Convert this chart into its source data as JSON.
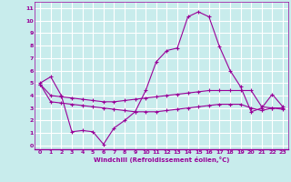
{
  "background_color": "#c8ecec",
  "line_color": "#990099",
  "grid_color": "#ffffff",
  "xlabel": "Windchill (Refroidissement éolien,°C)",
  "x_ticks": [
    0,
    1,
    2,
    3,
    4,
    5,
    6,
    7,
    8,
    9,
    10,
    11,
    12,
    13,
    14,
    15,
    16,
    17,
    18,
    19,
    20,
    21,
    22,
    23
  ],
  "y_ticks": [
    0,
    1,
    2,
    3,
    4,
    5,
    6,
    7,
    8,
    9,
    10,
    11
  ],
  "ylim": [
    -0.3,
    11.5
  ],
  "xlim": [
    -0.5,
    23.5
  ],
  "series": [
    {
      "x": [
        0,
        1,
        2,
        3,
        4,
        5,
        6,
        7,
        8,
        9,
        10,
        11,
        12,
        13,
        14,
        15,
        16,
        17,
        18,
        19,
        20,
        21,
        22,
        23
      ],
      "y": [
        5.0,
        5.5,
        4.0,
        1.1,
        1.2,
        1.1,
        0.1,
        1.4,
        2.0,
        2.7,
        4.4,
        6.7,
        7.6,
        7.8,
        10.3,
        10.7,
        10.3,
        7.9,
        6.0,
        4.7,
        2.7,
        3.0,
        4.1,
        3.1
      ]
    },
    {
      "x": [
        0,
        1,
        2,
        3,
        4,
        5,
        6,
        7,
        8,
        9,
        10,
        11,
        12,
        13,
        14,
        15,
        16,
        17,
        18,
        19,
        20,
        21,
        22,
        23
      ],
      "y": [
        4.9,
        4.0,
        3.9,
        3.8,
        3.7,
        3.6,
        3.5,
        3.5,
        3.6,
        3.7,
        3.8,
        3.9,
        4.0,
        4.1,
        4.2,
        4.3,
        4.4,
        4.4,
        4.4,
        4.4,
        4.4,
        3.1,
        3.0,
        3.0
      ]
    },
    {
      "x": [
        0,
        1,
        2,
        3,
        4,
        5,
        6,
        7,
        8,
        9,
        10,
        11,
        12,
        13,
        14,
        15,
        16,
        17,
        18,
        19,
        20,
        21,
        22,
        23
      ],
      "y": [
        4.9,
        3.5,
        3.4,
        3.3,
        3.2,
        3.1,
        3.0,
        2.9,
        2.8,
        2.7,
        2.7,
        2.7,
        2.8,
        2.9,
        3.0,
        3.1,
        3.2,
        3.3,
        3.3,
        3.3,
        3.0,
        2.8,
        3.0,
        2.9
      ]
    }
  ]
}
